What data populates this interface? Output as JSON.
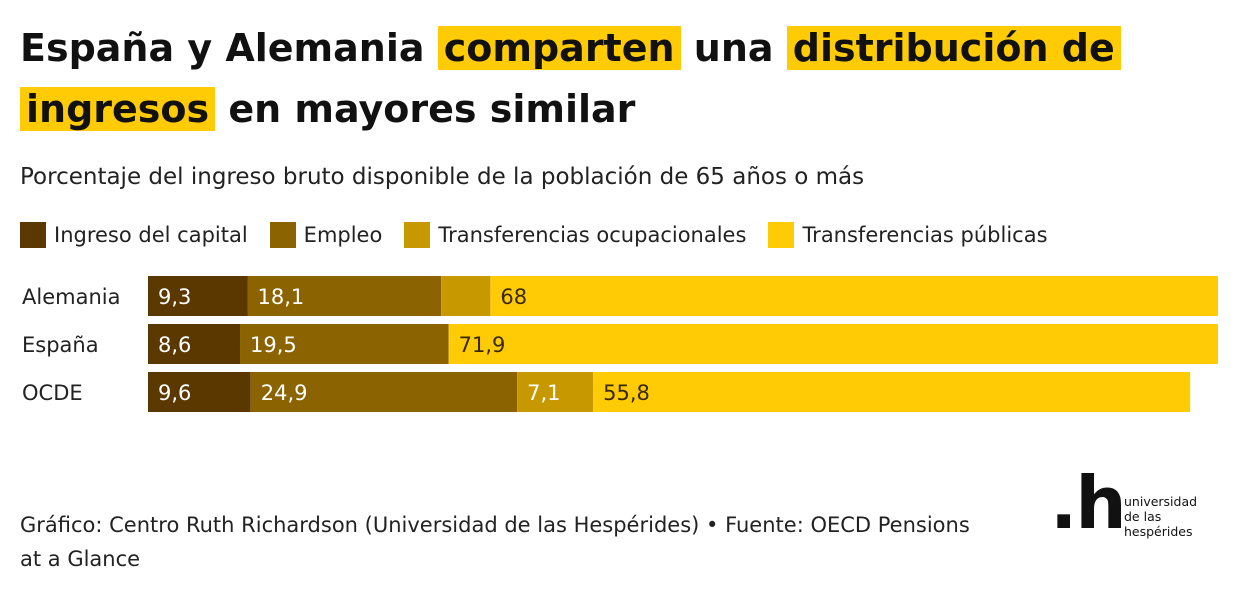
{
  "title": {
    "parts": [
      {
        "text": "España y Alemania ",
        "highlight": false
      },
      {
        "text": "comparten",
        "highlight": true
      },
      {
        "text": " una ",
        "highlight": false
      },
      {
        "text": "distribución de ingresos",
        "highlight": true
      },
      {
        "text": " en mayores similar",
        "highlight": false
      }
    ]
  },
  "subtitle": "Porcentaje del ingreso bruto disponible de la población de 65 años o más",
  "colors": {
    "highlight": "#ffcb05",
    "capital": "#5a3800",
    "empleo": "#8b6300",
    "ocupacionales": "#c89800",
    "publicas": "#ffcb05"
  },
  "chart_data": {
    "type": "bar",
    "orientation": "horizontal",
    "stacked": true,
    "categories": [
      "Alemania",
      "España",
      "OCDE"
    ],
    "series": [
      {
        "name": "Ingreso del capital",
        "color": "#5a3800",
        "label_color": "#ffffff",
        "values": [
          9.3,
          8.6,
          9.6
        ],
        "labels": [
          "9,3",
          "8,6",
          "9,6"
        ]
      },
      {
        "name": "Empleo",
        "color": "#8b6300",
        "label_color": "#ffffff",
        "values": [
          18.1,
          19.5,
          24.9
        ],
        "labels": [
          "18,1",
          "19,5",
          "24,9"
        ]
      },
      {
        "name": "Transferencias ocupacionales",
        "color": "#c89800",
        "label_color": "#ffffff",
        "values": [
          4.6,
          0,
          7.1
        ],
        "labels": [
          "",
          "",
          "7,1"
        ]
      },
      {
        "name": "Transferencias públicas",
        "color": "#ffcb05",
        "label_color": "#3a2800",
        "values": [
          68,
          71.9,
          55.8
        ],
        "labels": [
          "68",
          "71,9",
          "55,8"
        ]
      }
    ],
    "xlim": [
      0,
      100
    ],
    "grid": false,
    "legend_position": "top-left"
  },
  "footer": "Gráfico: Centro Ruth Richardson (Universidad de las Hespérides) • Fuente: OECD Pensions at a Glance",
  "logo": {
    "mark": ".h",
    "lines": [
      "universidad",
      "de las",
      "hespérides"
    ]
  }
}
